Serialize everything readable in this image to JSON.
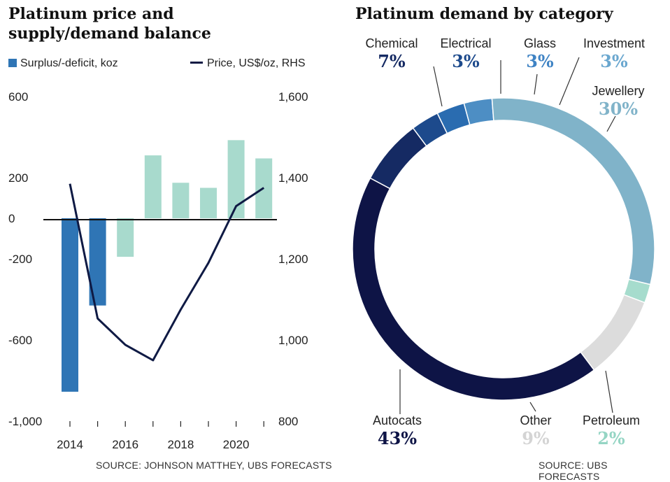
{
  "left_chart": {
    "title": "Platinum price and supply/demand balance",
    "source": "SOURCE: JOHNSON MATTHEY, UBS FORECASTS"
  },
  "right_chart": {
    "title": "Platinum demand by category",
    "source": "SOURCE: UBS FORECASTS"
  },
  "chart_data": [
    {
      "type": "bar",
      "title": "Platinum price and supply/demand balance",
      "x": [
        2014,
        2015,
        2016,
        2017,
        2018,
        2019,
        2020,
        2021
      ],
      "x_tick_labels": [
        "2014",
        "2016",
        "2018",
        "2020"
      ],
      "series": [
        {
          "name": "Surplus/-deficit, koz",
          "axis": "left",
          "values": [
            -855,
            -430,
            -190,
            310,
            175,
            150,
            385,
            295
          ],
          "colors": [
            "#2f75b5",
            "#2f75b5",
            "#a8dacd",
            "#a8dacd",
            "#a8dacd",
            "#a8dacd",
            "#a8dacd",
            "#a8dacd"
          ]
        },
        {
          "name": "Price, US$/oz, RHS",
          "type": "line",
          "axis": "right",
          "x": [
            2014,
            2015,
            2016,
            2017,
            2018,
            2019,
            2020,
            2021
          ],
          "values": [
            1385,
            1053,
            988,
            950,
            1075,
            1190,
            1330,
            1375
          ],
          "color": "#0f1a44"
        }
      ],
      "ylim_left": [
        -1000,
        600
      ],
      "yticks_left": [
        600,
        200,
        0,
        -200,
        -600,
        -1000
      ],
      "ytick_labels_left": [
        "600",
        "200",
        "0",
        "-200",
        "-600",
        "-1,000"
      ],
      "ylim_right": [
        800,
        1600
      ],
      "yticks_right": [
        1600,
        1400,
        1200,
        1000,
        800
      ],
      "ytick_labels_right": [
        "1,600",
        "1,400",
        "1,200",
        "1,000",
        "800"
      ],
      "legend_position": "top-left",
      "grid": false
    },
    {
      "type": "pie",
      "donut": true,
      "title": "Platinum demand by category",
      "slices": [
        {
          "label": "Chemical",
          "pct_label": "7%",
          "value": 7,
          "color": "#152a63",
          "text_color": "#152a63"
        },
        {
          "label": "Electrical",
          "pct_label": "3%",
          "value": 3,
          "color": "#1d4a8c",
          "text_color": "#1d4a8c"
        },
        {
          "label": "Glass",
          "pct_label": "3%",
          "value": 3,
          "color": "#2a6cb0",
          "text_color": "#3f83c4"
        },
        {
          "label": "Investment",
          "pct_label": "3%",
          "value": 3,
          "color": "#4d8ec4",
          "text_color": "#6aa7cf"
        },
        {
          "label": "Jewellery",
          "pct_label": "30%",
          "value": 30,
          "color": "#80b3c9",
          "text_color": "#80b3c9"
        },
        {
          "label": "Petroleum",
          "pct_label": "2%",
          "value": 2,
          "color": "#a6dccd",
          "text_color": "#95d5c4"
        },
        {
          "label": "Other",
          "pct_label": "9%",
          "value": 9,
          "color": "#dcdcdc",
          "text_color": "#d4d4d4"
        },
        {
          "label": "Autocats",
          "pct_label": "43%",
          "value": 43,
          "color": "#0e1446",
          "text_color": "#0e1446"
        }
      ]
    }
  ]
}
